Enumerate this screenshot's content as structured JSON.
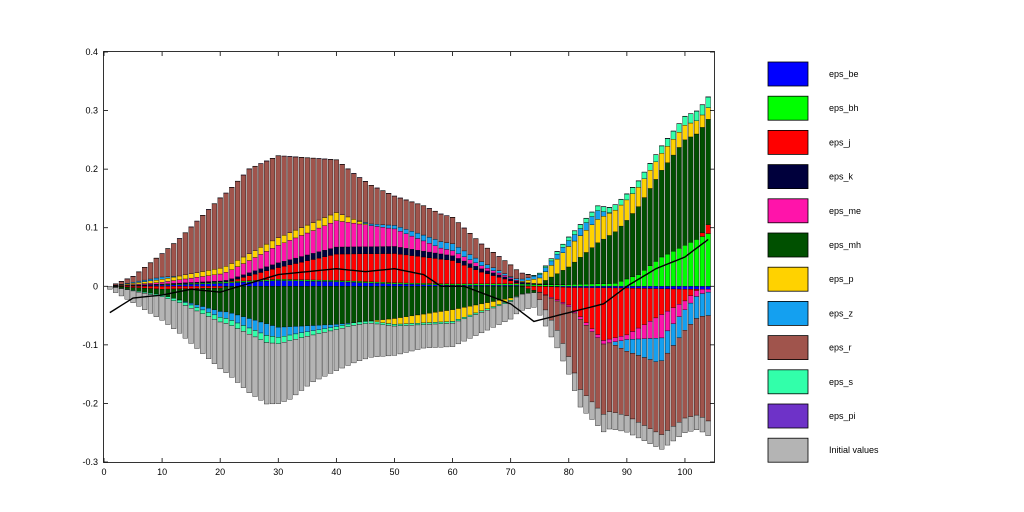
{
  "chart_data": {
    "type": "bar",
    "stacked": true,
    "title": "",
    "xlabel": "",
    "ylabel": "",
    "xlim": [
      0,
      105
    ],
    "ylim": [
      -0.3,
      0.4
    ],
    "x_ticks": [
      0,
      10,
      20,
      30,
      40,
      50,
      60,
      70,
      80,
      90,
      100
    ],
    "y_ticks": [
      -0.3,
      -0.2,
      -0.1,
      0,
      0.1,
      0.2,
      0.3,
      0.4
    ],
    "y_tick_labels": [
      "-0.3",
      "-0.2",
      "-0.1",
      "0",
      "0.1",
      "0.2",
      "0.3",
      "0.4"
    ],
    "legend_position": "right",
    "grid": false,
    "line_series": {
      "color": "#000000",
      "knots": [
        [
          1,
          -0.045
        ],
        [
          5,
          -0.02
        ],
        [
          10,
          -0.015
        ],
        [
          15,
          -0.005
        ],
        [
          20,
          -0.01
        ],
        [
          25,
          0.005
        ],
        [
          30,
          0.02
        ],
        [
          35,
          0.025
        ],
        [
          40,
          0.03
        ],
        [
          45,
          0.025
        ],
        [
          50,
          0.03
        ],
        [
          55,
          0.02
        ],
        [
          58,
          0.0
        ],
        [
          62,
          0.0
        ],
        [
          66,
          -0.015
        ],
        [
          70,
          -0.03
        ],
        [
          74,
          -0.06
        ],
        [
          78,
          -0.05
        ],
        [
          82,
          -0.04
        ],
        [
          86,
          -0.03
        ],
        [
          90,
          0.0
        ],
        [
          95,
          0.03
        ],
        [
          100,
          0.05
        ],
        [
          104,
          0.08
        ]
      ]
    },
    "series": [
      {
        "name": "eps_be",
        "color": "#0000ff",
        "knots": [
          [
            1,
            0
          ],
          [
            10,
            0.002
          ],
          [
            20,
            0.005
          ],
          [
            30,
            0.01
          ],
          [
            40,
            0.008
          ],
          [
            50,
            0.004
          ],
          [
            60,
            0.002
          ],
          [
            70,
            0.002
          ],
          [
            80,
            -0.002
          ],
          [
            90,
            -0.003
          ],
          [
            100,
            -0.005
          ],
          [
            104,
            -0.005
          ]
        ]
      },
      {
        "name": "eps_bh",
        "color": "#00ff00",
        "knots": [
          [
            1,
            0
          ],
          [
            20,
            0.002
          ],
          [
            60,
            0.002
          ],
          [
            80,
            0.003
          ],
          [
            88,
            0.005
          ],
          [
            92,
            0.02
          ],
          [
            96,
            0.05
          ],
          [
            100,
            0.07
          ],
          [
            104,
            0.09
          ]
        ]
      },
      {
        "name": "eps_j",
        "color": "#ff0000",
        "knots": [
          [
            1,
            0
          ],
          [
            10,
            -0.005
          ],
          [
            20,
            -0.003
          ],
          [
            30,
            0.02
          ],
          [
            40,
            0.045
          ],
          [
            50,
            0.05
          ],
          [
            60,
            0.04
          ],
          [
            65,
            0.02
          ],
          [
            70,
            0.005
          ],
          [
            75,
            -0.01
          ],
          [
            80,
            -0.03
          ],
          [
            86,
            -0.09
          ],
          [
            90,
            -0.08
          ],
          [
            95,
            -0.05
          ],
          [
            100,
            -0.02
          ],
          [
            104,
            0.015
          ]
        ]
      },
      {
        "name": "eps_k",
        "color": "#00003c",
        "knots": [
          [
            1,
            0
          ],
          [
            20,
            0.002
          ],
          [
            30,
            0.008
          ],
          [
            40,
            0.012
          ],
          [
            50,
            0.012
          ],
          [
            60,
            0.008
          ],
          [
            70,
            0.003
          ],
          [
            80,
            0.0
          ],
          [
            104,
            0.0
          ]
        ]
      },
      {
        "name": "eps_me",
        "color": "#ff14aa",
        "knots": [
          [
            1,
            0
          ],
          [
            10,
            0.003
          ],
          [
            20,
            0.012
          ],
          [
            30,
            0.03
          ],
          [
            40,
            0.045
          ],
          [
            50,
            0.03
          ],
          [
            58,
            0.01
          ],
          [
            70,
            0.002
          ],
          [
            80,
            -0.003
          ],
          [
            90,
            -0.008
          ],
          [
            96,
            -0.04
          ],
          [
            100,
            -0.015
          ],
          [
            104,
            -0.005
          ]
        ]
      },
      {
        "name": "eps_mh",
        "color": "#005000",
        "knots": [
          [
            1,
            0
          ],
          [
            10,
            -0.01
          ],
          [
            20,
            -0.04
          ],
          [
            30,
            -0.07
          ],
          [
            40,
            -0.065
          ],
          [
            50,
            -0.055
          ],
          [
            60,
            -0.04
          ],
          [
            70,
            -0.02
          ],
          [
            75,
            0.0
          ],
          [
            80,
            0.03
          ],
          [
            85,
            0.07
          ],
          [
            90,
            0.1
          ],
          [
            95,
            0.14
          ],
          [
            100,
            0.18
          ],
          [
            104,
            0.18
          ]
        ]
      },
      {
        "name": "eps_p",
        "color": "#ffd200",
        "knots": [
          [
            1,
            0
          ],
          [
            10,
            0.005
          ],
          [
            20,
            0.01
          ],
          [
            30,
            0.013
          ],
          [
            40,
            0.014
          ],
          [
            50,
            -0.01
          ],
          [
            60,
            -0.02
          ],
          [
            65,
            -0.012
          ],
          [
            70,
            -0.004
          ],
          [
            75,
            0.01
          ],
          [
            80,
            0.035
          ],
          [
            85,
            0.04
          ],
          [
            90,
            0.035
          ],
          [
            95,
            0.03
          ],
          [
            100,
            0.025
          ],
          [
            104,
            0.02
          ]
        ]
      },
      {
        "name": "eps_z",
        "color": "#14a0f0",
        "knots": [
          [
            1,
            0
          ],
          [
            10,
            0.004
          ],
          [
            20,
            -0.01
          ],
          [
            28,
            -0.02
          ],
          [
            35,
            -0.01
          ],
          [
            45,
            0.002
          ],
          [
            55,
            0.01
          ],
          [
            60,
            0.012
          ],
          [
            66,
            0.006
          ],
          [
            70,
            0.002
          ],
          [
            80,
            0.01
          ],
          [
            85,
            0.015
          ],
          [
            90,
            -0.02
          ],
          [
            95,
            -0.04
          ],
          [
            100,
            -0.035
          ],
          [
            104,
            -0.04
          ]
        ]
      },
      {
        "name": "eps_r",
        "color": "#a0544c",
        "knots": [
          [
            1,
            0
          ],
          [
            5,
            0.01
          ],
          [
            10,
            0.04
          ],
          [
            15,
            0.08
          ],
          [
            20,
            0.12
          ],
          [
            25,
            0.145
          ],
          [
            30,
            0.14
          ],
          [
            40,
            0.09
          ],
          [
            50,
            0.05
          ],
          [
            55,
            0.05
          ],
          [
            60,
            0.045
          ],
          [
            65,
            0.03
          ],
          [
            70,
            0.02
          ],
          [
            74,
            0.0
          ],
          [
            78,
            -0.05
          ],
          [
            82,
            -0.12
          ],
          [
            86,
            -0.12
          ],
          [
            90,
            -0.11
          ],
          [
            95,
            -0.12
          ],
          [
            100,
            -0.15
          ],
          [
            104,
            -0.18
          ]
        ]
      },
      {
        "name": "eps_s",
        "color": "#32ffaa",
        "knots": [
          [
            1,
            0
          ],
          [
            10,
            -0.003
          ],
          [
            20,
            -0.008
          ],
          [
            28,
            -0.012
          ],
          [
            40,
            -0.005
          ],
          [
            50,
            -0.003
          ],
          [
            60,
            -0.003
          ],
          [
            70,
            -0.002
          ],
          [
            80,
            0.006
          ],
          [
            90,
            0.01
          ],
          [
            95,
            0.012
          ],
          [
            100,
            0.015
          ],
          [
            104,
            0.018
          ]
        ]
      },
      {
        "name": "eps_pi",
        "color": "#6e32c8",
        "knots": [
          [
            1,
            0
          ],
          [
            104,
            0.0005
          ]
        ]
      },
      {
        "name": "Initial values",
        "color": "#b4b4b4",
        "knots": [
          [
            1,
            -0.005
          ],
          [
            5,
            -0.02
          ],
          [
            10,
            -0.04
          ],
          [
            15,
            -0.06
          ],
          [
            20,
            -0.08
          ],
          [
            25,
            -0.1
          ],
          [
            28,
            -0.105
          ],
          [
            32,
            -0.1
          ],
          [
            36,
            -0.08
          ],
          [
            40,
            -0.07
          ],
          [
            45,
            -0.06
          ],
          [
            50,
            -0.05
          ],
          [
            55,
            -0.04
          ],
          [
            60,
            -0.04
          ],
          [
            65,
            -0.035
          ],
          [
            70,
            -0.03
          ],
          [
            74,
            -0.025
          ],
          [
            78,
            -0.03
          ],
          [
            82,
            -0.03
          ],
          [
            86,
            -0.03
          ],
          [
            90,
            -0.028
          ],
          [
            95,
            -0.025
          ],
          [
            100,
            -0.025
          ],
          [
            104,
            -0.025
          ]
        ]
      }
    ]
  }
}
